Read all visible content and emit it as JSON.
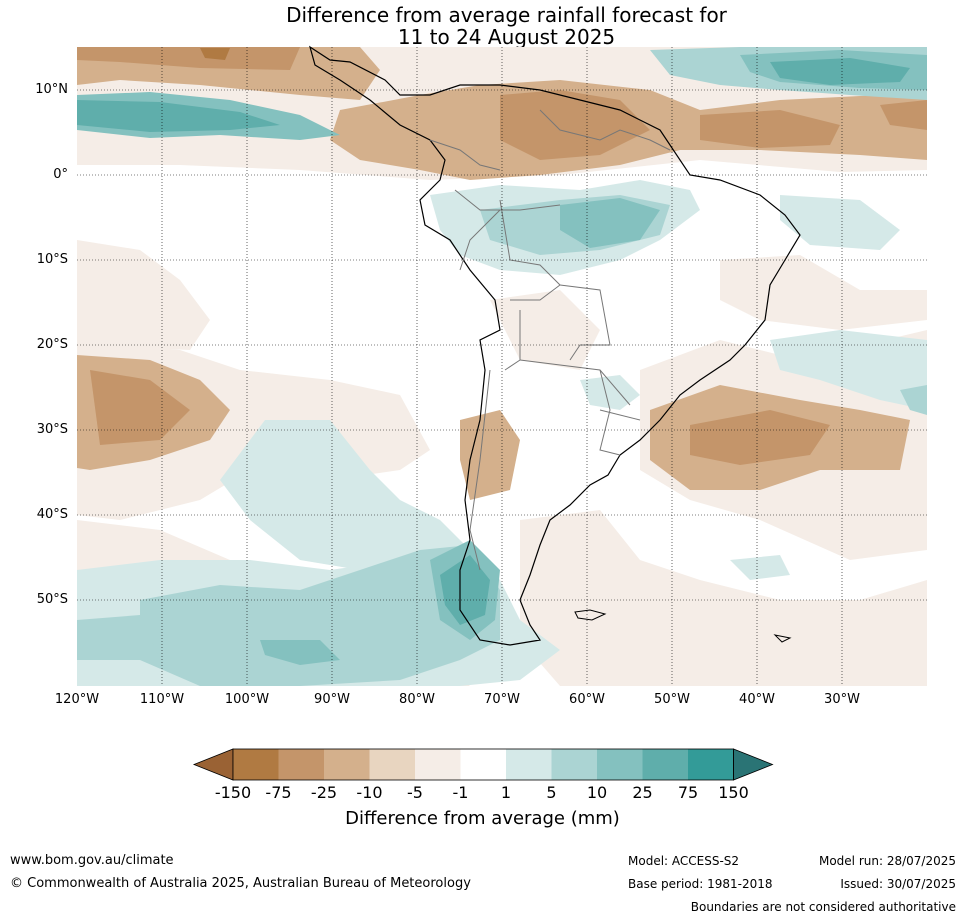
{
  "title_line1": "Difference from average rainfall forecast for",
  "title_line2": "11 to 24 August 2025",
  "lat_labels": [
    "10°N",
    "0°",
    "10°S",
    "20°S",
    "30°S",
    "40°S",
    "50°S"
  ],
  "lon_labels": [
    "120°W",
    "110°W",
    "100°W",
    "90°W",
    "80°W",
    "70°W",
    "60°W",
    "50°W",
    "40°W",
    "30°W"
  ],
  "colorbar": {
    "labels": [
      "-150",
      "-75",
      "-25",
      "-10",
      "-5",
      "-1",
      "1",
      "5",
      "10",
      "25",
      "75",
      "150"
    ],
    "colors": [
      "#9a6234",
      "#b07a42",
      "#c4956a",
      "#d4b08c",
      "#e8d5c0",
      "#f5ede7",
      "#ffffff",
      "#d5e9e8",
      "#abd4d3",
      "#84c1bf",
      "#5faeab",
      "#339b98",
      "#2a7475"
    ],
    "title": "Difference from average (mm)"
  },
  "footer": {
    "url": "www.bom.gov.au/climate",
    "copyright": "© Commonwealth of Australia 2025, Australian Bureau of Meteorology",
    "model": "Model: ACCESS-S2",
    "base_period": "Base period: 1981-2018",
    "model_run": "Model run: 28/07/2025",
    "issued": "Issued: 30/07/2025",
    "disclaimer": "Boundaries are not considered authoritative"
  }
}
